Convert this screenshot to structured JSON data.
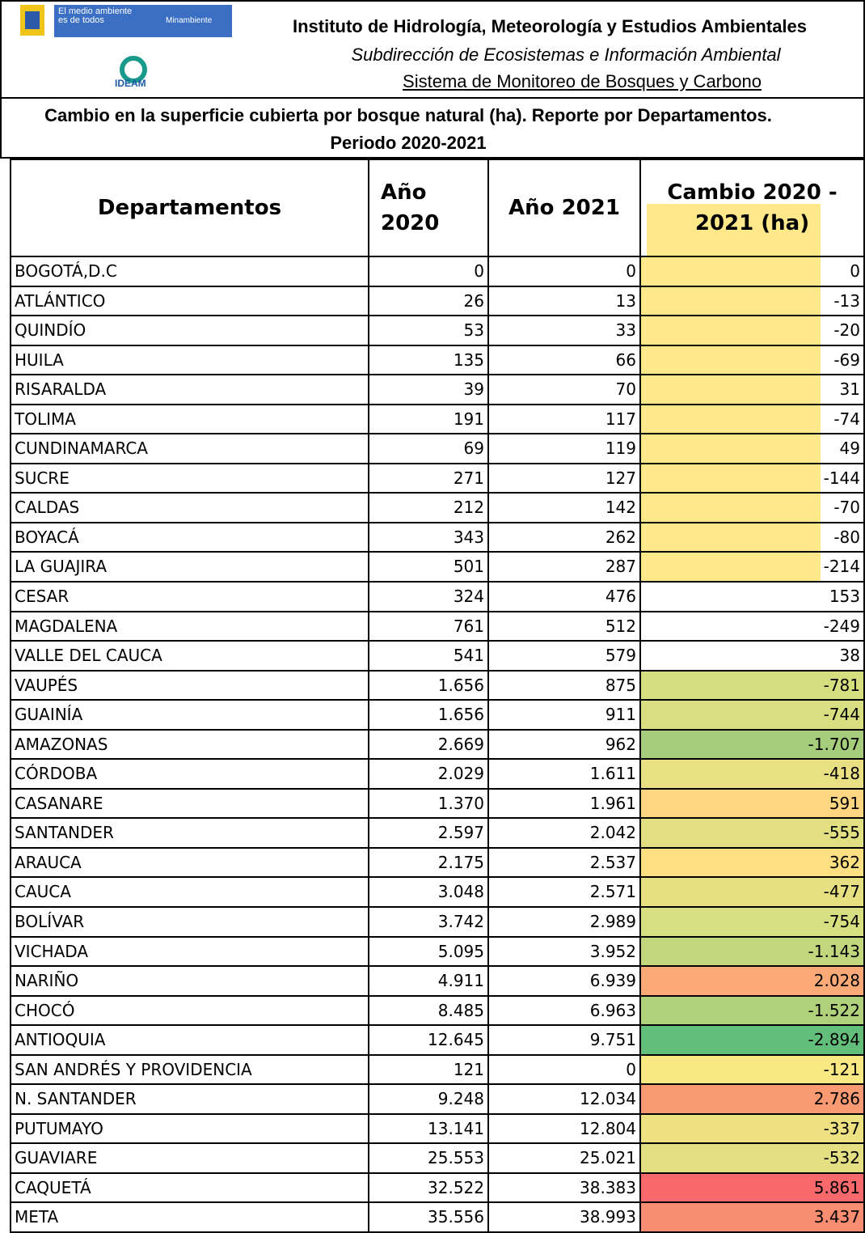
{
  "header": {
    "logo_text_1": "El medio ambiente es de todos",
    "logo_text_2": "Minambiente",
    "logo_text_3": "IDEAM",
    "institute": "Instituto de Hidrología, Meteorología y Estudios Ambientales",
    "subdirection": "Subdirección de Ecosistemas e Información Ambiental",
    "system": "Sistema de Monitoreo de Bosques y Carbono"
  },
  "table": {
    "title": "Cambio en la superficie cubierta por bosque natural (ha). Reporte por Departamentos. Periodo 2020-2021",
    "columns": [
      "Departamentos",
      "Año 2020",
      "Año 2021",
      "Cambio 2020 - 2021 (ha)"
    ],
    "rows": [
      [
        "BOGOTÁ,D.C",
        "0",
        "0",
        "0"
      ],
      [
        "ATLÁNTICO",
        "26",
        "13",
        "-13"
      ],
      [
        "QUINDÍO",
        "53",
        "33",
        "-20"
      ],
      [
        "HUILA",
        "135",
        "66",
        "-69"
      ],
      [
        "RISARALDA",
        "39",
        "70",
        "31"
      ],
      [
        "TOLIMA",
        "191",
        "117",
        "-74"
      ],
      [
        "CUNDINAMARCA",
        "69",
        "119",
        "49"
      ],
      [
        "SUCRE",
        "271",
        "127",
        "-144"
      ],
      [
        "CALDAS",
        "212",
        "142",
        "-70"
      ],
      [
        "BOYACÁ",
        "343",
        "262",
        "-80"
      ],
      [
        "LA GUAJIRA",
        "501",
        "287",
        "-214"
      ],
      [
        "CESAR",
        "324",
        "476",
        "153"
      ],
      [
        "MAGDALENA",
        "761",
        "512",
        "-249"
      ],
      [
        "VALLE DEL CAUCA",
        "541",
        "579",
        "38"
      ],
      [
        "VAUPÉS",
        "1.656",
        "875",
        "-781"
      ],
      [
        "GUAINÍA",
        "1.656",
        "911",
        "-744"
      ],
      [
        "AMAZONAS",
        "2.669",
        "962",
        "-1.707"
      ],
      [
        "CÓRDOBA",
        "2.029",
        "1.611",
        "-418"
      ],
      [
        "CASANARE",
        "1.370",
        "1.961",
        "591"
      ],
      [
        "SANTANDER",
        "2.597",
        "2.042",
        "-555"
      ],
      [
        "ARAUCA",
        "2.175",
        "2.537",
        "362"
      ],
      [
        "CAUCA",
        "3.048",
        "2.571",
        "-477"
      ],
      [
        "BOLÍVAR",
        "3.742",
        "2.989",
        "-754"
      ],
      [
        "VICHADA",
        "5.095",
        "3.952",
        "-1.143"
      ],
      [
        "NARIÑO",
        "4.911",
        "6.939",
        "2.028"
      ],
      [
        "CHOCÓ",
        "8.485",
        "6.963",
        "-1.522"
      ],
      [
        "ANTIOQUIA",
        "12.645",
        "9.751",
        "-2.894"
      ],
      [
        "SAN ANDRÉS Y PROVIDENCIA",
        "121",
        "0",
        "-121"
      ],
      [
        "N. SANTANDER",
        "9.248",
        "12.034",
        "2.786"
      ],
      [
        "PUTUMAYO",
        "13.141",
        "12.804",
        "-337"
      ],
      [
        "GUAVIARE",
        "25.553",
        "25.021",
        "-532"
      ],
      [
        "CAQUETÁ",
        "32.522",
        "38.383",
        "5.861"
      ],
      [
        "META",
        "35.556",
        "38.993",
        "3.437"
      ]
    ],
    "change_colors": [
      "#ffe88a",
      "#ffe88a",
      "#ffe88a",
      "#ffe88a",
      "#ffe88a",
      "#ffe88a",
      "#ffe88a",
      "#ffe88a",
      "#ffe88a",
      "#ffe88a",
      "#ffe88a",
      null,
      null,
      null,
      "#d7de80",
      "#d9df81",
      "#a6cd7c",
      "#e9e083",
      "#fed580",
      "#e2df82",
      "#fedf81",
      "#e6e083",
      "#d8df81",
      "#c2d67e",
      "#fbaa77",
      "#b0d07c",
      "#63be7b",
      "#fae884",
      "#fa9a73",
      "#ede182",
      "#e3df82",
      "#f8696b",
      "#f98d71"
    ]
  }
}
